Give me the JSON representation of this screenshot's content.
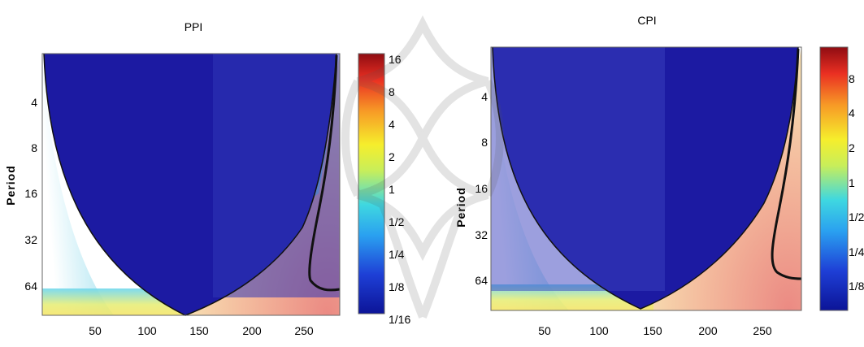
{
  "watermark_icon": "institution-logo-watermark",
  "chart_data": [
    {
      "type": "heatmap",
      "title": "PPI",
      "ylabel": "Period",
      "xlabel": "",
      "x_ticks": [
        50,
        100,
        150,
        200,
        250
      ],
      "xlim": [
        1,
        285
      ],
      "y_ticks": [
        "4",
        "8",
        "16",
        "32",
        "64"
      ],
      "y_tick_values": [
        4,
        8,
        16,
        32,
        64
      ],
      "ylim": [
        2,
        110
      ],
      "y_scale": "log2",
      "colorbar_ticks": [
        "16",
        "8",
        "4",
        "2",
        "1",
        "1/2",
        "1/4",
        "1/8",
        "1/16"
      ],
      "colorbar_range": [
        "1/16",
        "16"
      ],
      "contour": [
        [
          282,
          2
        ],
        [
          281,
          4
        ],
        [
          279,
          8
        ],
        [
          273,
          16
        ],
        [
          265,
          28
        ],
        [
          262,
          40
        ],
        [
          262,
          52
        ],
        [
          270,
          60
        ],
        [
          285,
          66
        ]
      ]
    },
    {
      "type": "heatmap",
      "title": "CPI",
      "ylabel": "Period",
      "xlabel": "",
      "x_ticks": [
        50,
        100,
        150,
        200,
        250
      ],
      "xlim": [
        1,
        285
      ],
      "y_ticks": [
        "4",
        "8",
        "16",
        "32",
        "64"
      ],
      "y_tick_values": [
        4,
        8,
        16,
        32,
        64
      ],
      "ylim": [
        2,
        110
      ],
      "y_scale": "log2",
      "colorbar_ticks": [
        "8",
        "4",
        "2",
        "1",
        "1/2",
        "1/4",
        "1/8"
      ],
      "colorbar_range": [
        "1/16",
        "16"
      ],
      "contour": [
        [
          282,
          2
        ],
        [
          281,
          5
        ],
        [
          277,
          10
        ],
        [
          270,
          18
        ],
        [
          264,
          28
        ],
        [
          258,
          40
        ],
        [
          258,
          50
        ],
        [
          265,
          58
        ],
        [
          285,
          62
        ]
      ]
    }
  ]
}
